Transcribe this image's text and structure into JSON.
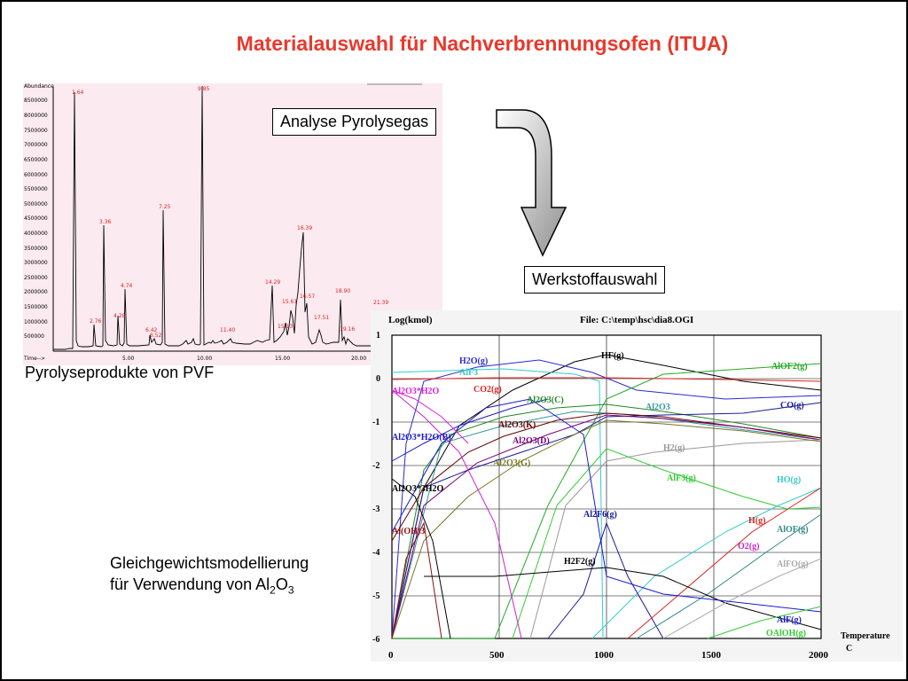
{
  "slide": {
    "title": "Materialauswahl für Nachverbrennungsofen (ITUA)",
    "box1": "Analyse Pyrolysegas",
    "box2": "Werkstoffauswahl",
    "pyro_label": "Pyrolyseprodukte von PVF",
    "equil_label_line1": "Gleichgewichtsmodellierung",
    "equil_label_line2_prefix": "für Verwendung von Al",
    "equil_label_sub1": "2",
    "equil_label_mid": "O",
    "equil_label_sub2": "3"
  },
  "chromatogram": {
    "ylabel": "Abundance",
    "xlabel": "Time-->",
    "yticks": [
      "8500000",
      "8000000",
      "7500000",
      "7000000",
      "6500000",
      "6000000",
      "5500000",
      "5000000",
      "4500000",
      "4000000",
      "3500000",
      "3000000",
      "2500000",
      "2000000",
      "1500000",
      "1000000",
      "500000"
    ],
    "xticks": [
      "5.00",
      "10.00",
      "15.00",
      "20.00"
    ],
    "peaks": [
      "1.64",
      "2.76",
      "3.36",
      "4.28",
      "4.74",
      "6.42",
      "6.52",
      "7.25",
      "9.85",
      "11.40",
      "14.29",
      "15.13",
      "15.61",
      "16.39",
      "16.57",
      "17.51",
      "18.90",
      "19.16",
      "21.39"
    ]
  },
  "equilibrium": {
    "header_left": "Log(kmol)",
    "header_right": "File: C:\\temp\\hsc\\dia8.OGI",
    "yticks": [
      "1",
      "0",
      "-1",
      "-2",
      "-3",
      "-4",
      "-5",
      "-6"
    ],
    "xticks": [
      "0",
      "500",
      "1000",
      "1500",
      "2000"
    ],
    "xlabel_line1": "Temperature",
    "xlabel_line2": "C",
    "species": [
      {
        "name": "HF(g)",
        "color": "#000000"
      },
      {
        "name": "H2O(g)",
        "color": "#2a2ad0"
      },
      {
        "name": "AlF3",
        "color": "#33cccc"
      },
      {
        "name": "AlOF2(g)",
        "color": "#22aa22"
      },
      {
        "name": "Al2O3*H2O",
        "color": "#e020e0"
      },
      {
        "name": "CO2(g)",
        "color": "#e02020"
      },
      {
        "name": "Al2O3(C)",
        "color": "#228822"
      },
      {
        "name": "Al2O3",
        "color": "#339999"
      },
      {
        "name": "CO(g)",
        "color": "#1a1a99"
      },
      {
        "name": "Al2O3(K)",
        "color": "#660000"
      },
      {
        "name": "Al2O3*H2O(B)",
        "color": "#1a1acc"
      },
      {
        "name": "Al2O3(D)",
        "color": "#770077"
      },
      {
        "name": "H2(g)",
        "color": "#999999"
      },
      {
        "name": "Al2O3(G)",
        "color": "#777722"
      },
      {
        "name": "AlF3(g)",
        "color": "#33cc33"
      },
      {
        "name": "HO(g)",
        "color": "#33cccc"
      },
      {
        "name": "Al2O3*3H2O",
        "color": "#000000"
      },
      {
        "name": "Al2F6(g)",
        "color": "#1a1a99"
      },
      {
        "name": "H(g)",
        "color": "#dd2222"
      },
      {
        "name": "Al(OH)3",
        "color": "#881111"
      },
      {
        "name": "AlOF(g)",
        "color": "#338888"
      },
      {
        "name": "O2(g)",
        "color": "#cc22cc"
      },
      {
        "name": "H2F2(g)",
        "color": "#000000"
      },
      {
        "name": "AlFO(g)",
        "color": "#aaaaaa"
      },
      {
        "name": "AlF(g)",
        "color": "#1a1acc"
      },
      {
        "name": "OAlOH(g)",
        "color": "#33cc33"
      }
    ]
  }
}
